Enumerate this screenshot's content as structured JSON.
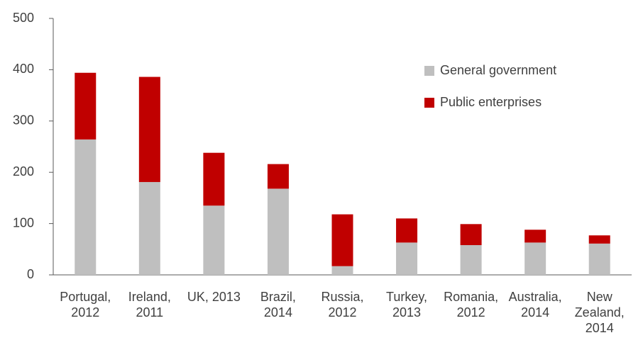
{
  "chart_data": {
    "type": "stacked_bar",
    "categories": [
      "Portugal, 2012",
      "Ireland, 2011",
      "UK, 2013",
      "Brazil, 2014",
      "Russia, 2012",
      "Turkey, 2013",
      "Romania, 2012",
      "Australia, 2014",
      "New Zealand, 2014"
    ],
    "series": [
      {
        "name": "General government",
        "color": "#bfbfbf",
        "values": [
          264,
          181,
          135,
          168,
          17,
          63,
          58,
          63,
          61
        ]
      },
      {
        "name": "Public enterprises",
        "color": "#c00000",
        "values": [
          130,
          205,
          103,
          48,
          101,
          47,
          41,
          25,
          16
        ]
      }
    ],
    "ylim": [
      0,
      500
    ],
    "yticks": [
      0,
      100,
      200,
      300,
      400,
      500
    ],
    "grid": false,
    "legend": "upper right"
  }
}
